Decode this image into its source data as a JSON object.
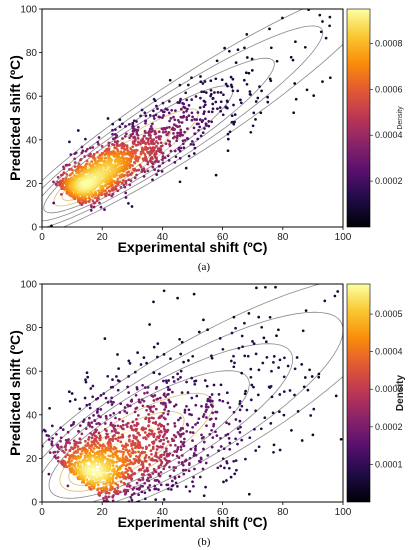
{
  "chart_data": [
    {
      "type": "scatter",
      "panel_label": "(a)",
      "xlabel": "Experimental shift (ºC)",
      "ylabel": "Predicted shift (ºC)",
      "xlim": [
        0,
        100
      ],
      "ylim": [
        0,
        100
      ],
      "xticks": [
        0,
        20,
        40,
        60,
        80,
        100
      ],
      "yticks": [
        0,
        20,
        40,
        60,
        80,
        100
      ],
      "colorbar": {
        "title": "Density",
        "colormap": "inferno",
        "range": [
          0,
          0.00095
        ],
        "ticks": [
          0.0002,
          0.0004,
          0.0006,
          0.0008
        ],
        "tick_labels": [
          "0.0002",
          "0.0004",
          "0.0006",
          "0.0008"
        ]
      },
      "trend": {
        "slope": 0.92,
        "intercept": 3.0,
        "along_spread": 30,
        "perp_spread": 4.2
      },
      "center": [
        15,
        20
      ],
      "contours": [
        {
          "along": 6,
          "perp": 2.0
        },
        {
          "along": 11,
          "perp": 3.1
        },
        {
          "along": 17,
          "perp": 4.2
        },
        {
          "along": 24,
          "perp": 5.5
        },
        {
          "along": 32,
          "perp": 7.0
        },
        {
          "along": 42,
          "perp": 8.6
        },
        {
          "along": 54,
          "perp": 10.4
        },
        {
          "along": 68,
          "perp": 12.5
        },
        {
          "along": 84,
          "perp": 15.0
        }
      ]
    },
    {
      "type": "scatter",
      "panel_label": "(b)",
      "xlabel": "Experimental shift (ºC)",
      "ylabel": "Predicted shift (ºC)",
      "xlim": [
        0,
        100
      ],
      "ylim": [
        0,
        100
      ],
      "xticks": [
        0,
        20,
        40,
        60,
        80,
        100
      ],
      "yticks": [
        0,
        20,
        40,
        60,
        80,
        100
      ],
      "colorbar": {
        "title": "Density",
        "colormap": "inferno",
        "range": [
          0,
          0.00058
        ],
        "ticks": [
          0.0001,
          0.0002,
          0.0003,
          0.0004,
          0.0005
        ],
        "tick_labels": [
          "0.0001",
          "0.0002",
          "0.0003",
          "0.0004",
          "0.0005"
        ]
      },
      "trend": {
        "slope": 0.85,
        "intercept": 5.0,
        "along_spread": 32,
        "perp_spread": 10
      },
      "center": [
        18,
        16
      ],
      "contours": [
        {
          "along": 6,
          "perp": 2.8
        },
        {
          "along": 11,
          "perp": 4.6
        },
        {
          "along": 17,
          "perp": 6.6
        },
        {
          "along": 24,
          "perp": 8.8
        },
        {
          "along": 32,
          "perp": 11.4
        },
        {
          "along": 42,
          "perp": 14.2
        },
        {
          "along": 54,
          "perp": 17.4
        },
        {
          "along": 68,
          "perp": 21.0
        },
        {
          "along": 84,
          "perp": 25.0
        }
      ]
    }
  ]
}
